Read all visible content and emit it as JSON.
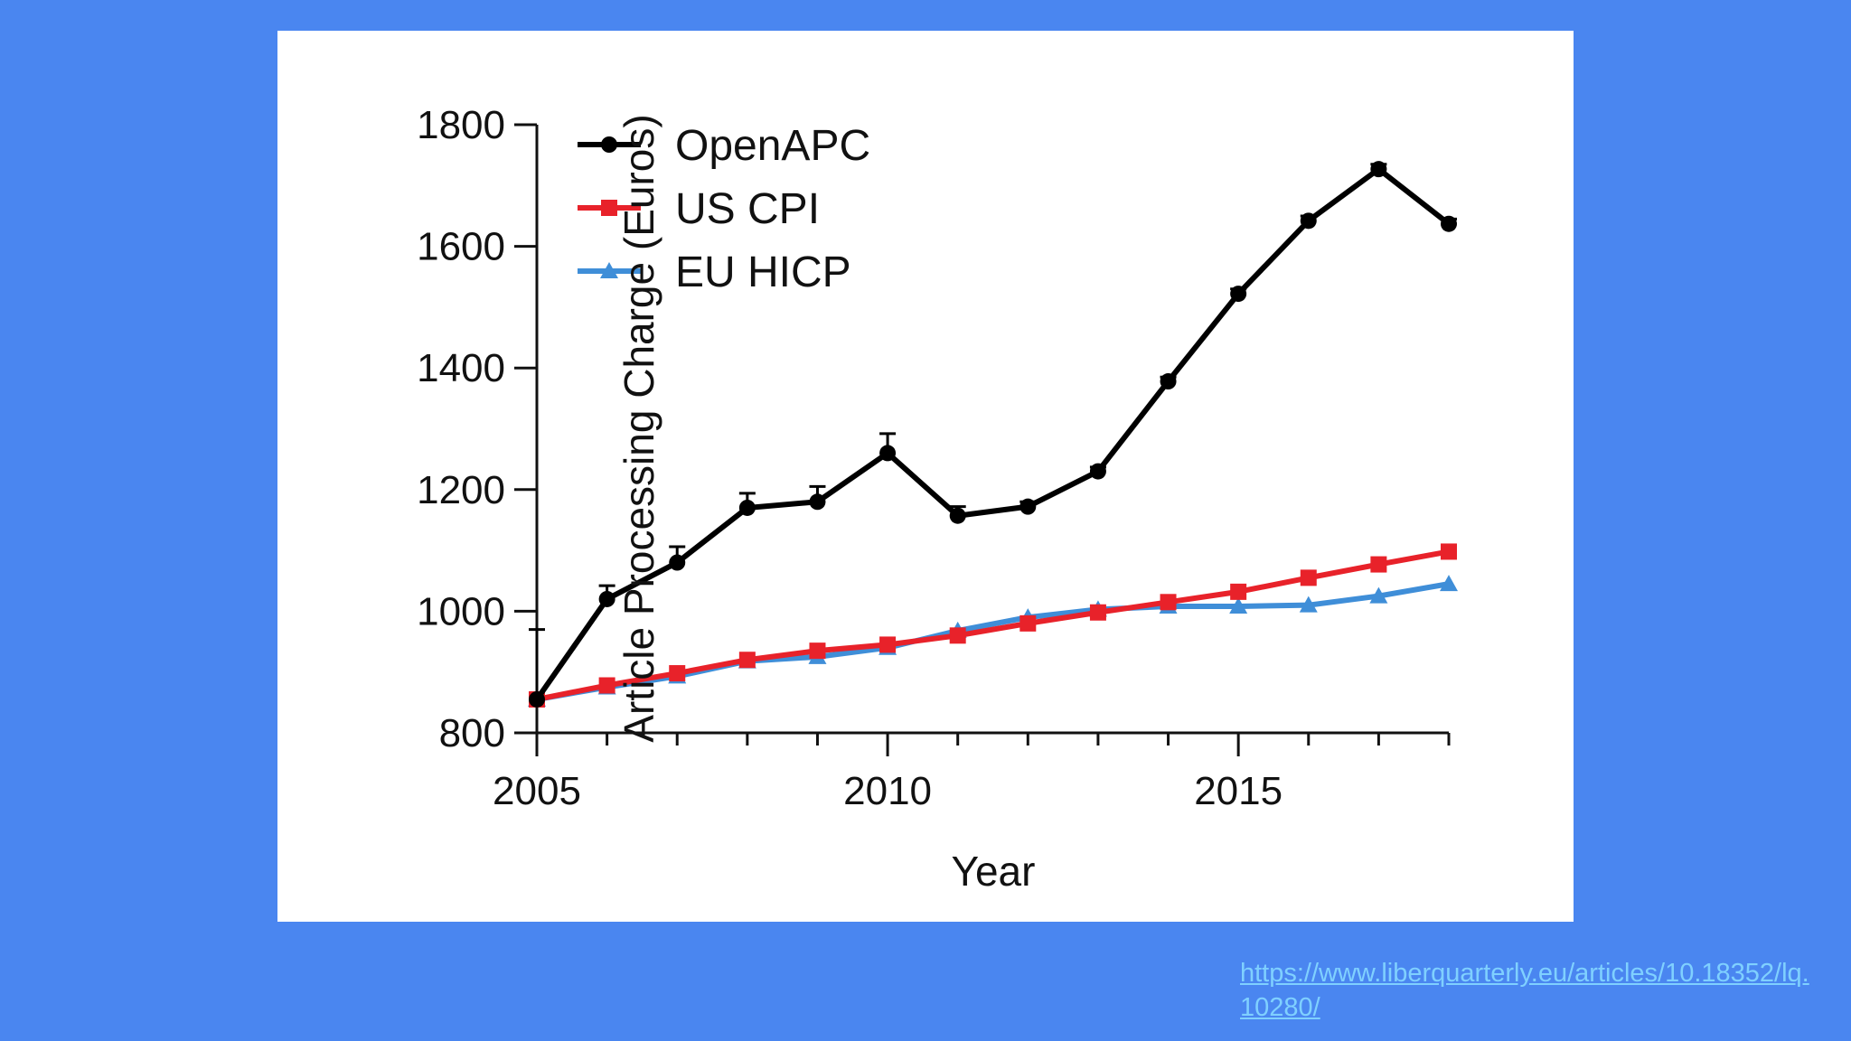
{
  "background_color": "#4a86f0",
  "source_link": "https://www.liberquarterly.eu/articles/10.18352/lq.10280/",
  "chart_data": {
    "type": "line",
    "xlabel": "Year",
    "ylabel": "Article Processing Charge (Euros)",
    "xlim": [
      2005,
      2018
    ],
    "ylim": [
      800,
      1800
    ],
    "xticks": [
      2005,
      2010,
      2015
    ],
    "yticks": [
      800,
      1000,
      1200,
      1400,
      1600,
      1800
    ],
    "grid": false,
    "legend_position": "top-left",
    "series": [
      {
        "name": "OpenAPC",
        "color": "#000000",
        "marker": "circle",
        "x": [
          2005,
          2006,
          2007,
          2008,
          2009,
          2010,
          2011,
          2012,
          2013,
          2014,
          2015,
          2016,
          2017,
          2018
        ],
        "y": [
          855,
          1020,
          1080,
          1170,
          1180,
          1260,
          1157,
          1172,
          1230,
          1378,
          1522,
          1642,
          1727,
          1637
        ],
        "error_upper": [
          970,
          1042,
          1106,
          1194,
          1205,
          1292,
          1172,
          1180,
          1237,
          1385,
          1530,
          1650,
          1735,
          1645
        ]
      },
      {
        "name": "US CPI",
        "color": "#e8222a",
        "marker": "square",
        "x": [
          2005,
          2006,
          2007,
          2008,
          2009,
          2010,
          2011,
          2012,
          2013,
          2014,
          2015,
          2016,
          2017,
          2018
        ],
        "y": [
          855,
          878,
          898,
          920,
          935,
          945,
          960,
          980,
          998,
          1015,
          1032,
          1055,
          1077,
          1098
        ]
      },
      {
        "name": "EU HICP",
        "color": "#3f8ed8",
        "marker": "triangle",
        "x": [
          2005,
          2006,
          2007,
          2008,
          2009,
          2010,
          2011,
          2012,
          2013,
          2014,
          2015,
          2016,
          2017,
          2018
        ],
        "y": [
          855,
          875,
          893,
          918,
          925,
          940,
          968,
          990,
          1003,
          1008,
          1008,
          1010,
          1025,
          1045
        ]
      }
    ]
  }
}
